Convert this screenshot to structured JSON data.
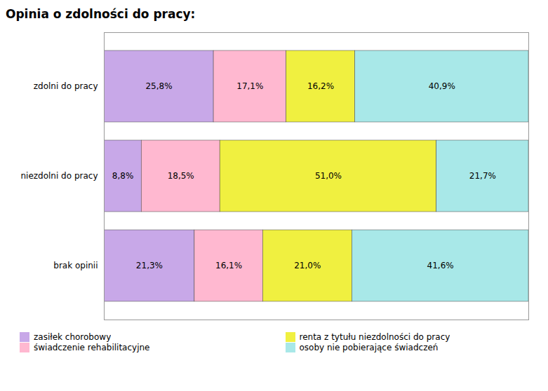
{
  "chart_data": {
    "type": "bar",
    "orientation": "horizontal",
    "stacked": true,
    "title": "Opinia o zdolności do pracy:",
    "categories": [
      "brak opinii",
      "niezdolni do pracy",
      "zdolni do pracy"
    ],
    "series": [
      {
        "name": "zasiłek chorobowy",
        "color": "#C8A8E8",
        "values": [
          21.3,
          8.8,
          25.8
        ],
        "value_labels": [
          "21,3%",
          "8,8%",
          "25,8%"
        ]
      },
      {
        "name": "świadczenie rehabilitacyjne",
        "color": "#FFB8D0",
        "values": [
          16.1,
          18.5,
          17.1
        ],
        "value_labels": [
          "16,1%",
          "18,5%",
          "17,1%"
        ]
      },
      {
        "name": "renta z tytułu niezdolności do pracy",
        "color": "#F0F040",
        "values": [
          21.0,
          51.0,
          16.2
        ],
        "value_labels": [
          "21,0%",
          "51,0%",
          "16,2%"
        ]
      },
      {
        "name": "osoby nie pobierające świadczeń",
        "color": "#A8E8E8",
        "values": [
          41.6,
          21.7,
          40.9
        ],
        "value_labels": [
          "41,6%",
          "21,7%",
          "40,9%"
        ]
      }
    ],
    "xlim": [
      0,
      100
    ],
    "data_labels": true,
    "tick_labels": "y",
    "grid": false,
    "legend": "bottom left"
  }
}
